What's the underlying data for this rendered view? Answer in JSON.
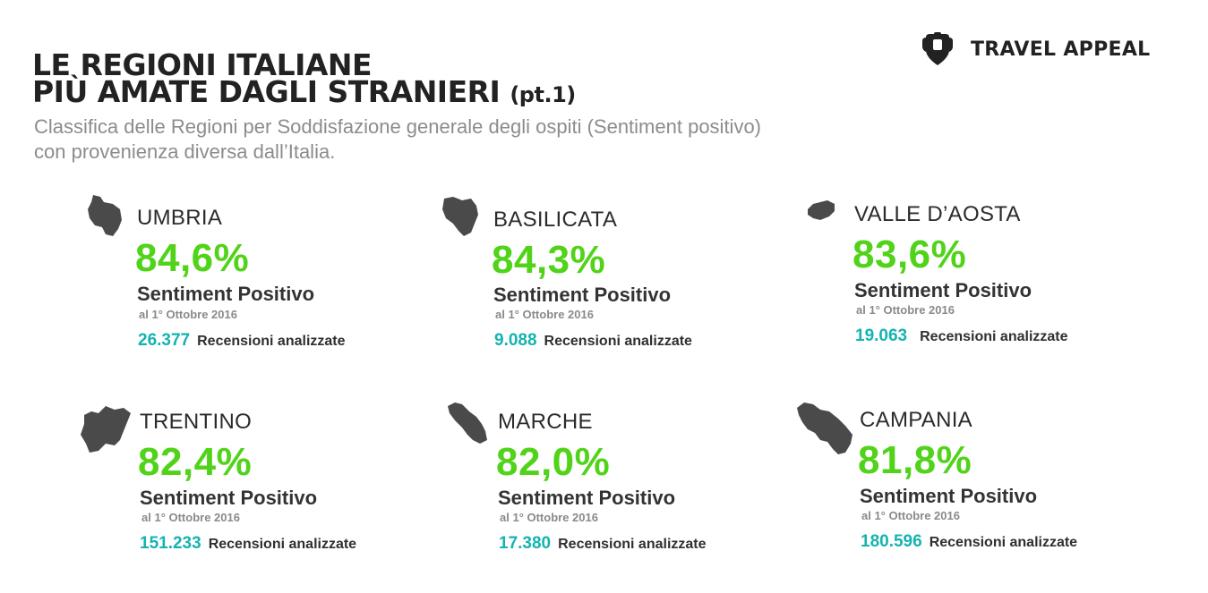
{
  "header": {
    "title_line1": "LE REGIONI ITALIANE",
    "title_line2": "PIÙ AMATE DAGLI STRANIERI",
    "title_suffix": "(pt.1)",
    "subtitle_line1": "Classifica delle Regioni per Soddisfazione generale degli ospiti (Sentiment positivo)",
    "subtitle_line2": "con provenienza diversa dall’Italia."
  },
  "brand": {
    "name": "TRAVEL APPEAL",
    "icon": "travel-appeal-logo-icon"
  },
  "colors": {
    "percent": "#51d31a",
    "reviews_count": "#15b3b0",
    "map": "#4a4a4a",
    "subtitle": "#8c8c8c"
  },
  "regions": [
    {
      "name": "UMBRIA",
      "percent": "84,6%",
      "sentiment_label": "Sentiment Positivo",
      "date": "al 1° Ottobre 2016",
      "reviews_count": "26.377",
      "reviews_label": "Recensioni analizzate",
      "icon": "umbria-map-icon"
    },
    {
      "name": "BASILICATA",
      "percent": "84,3%",
      "sentiment_label": "Sentiment Positivo",
      "date": "al 1° Ottobre 2016",
      "reviews_count": "9.088",
      "reviews_label": "Recensioni analizzate",
      "icon": "basilicata-map-icon"
    },
    {
      "name": "VALLE D’AOSTA",
      "percent": "83,6%",
      "sentiment_label": "Sentiment Positivo",
      "date": "al 1° Ottobre 2016",
      "reviews_count": "19.063",
      "reviews_label": "Recensioni analizzate",
      "icon": "valle-daosta-map-icon"
    },
    {
      "name": "TRENTINO",
      "percent": "82,4%",
      "sentiment_label": "Sentiment Positivo",
      "date": "al 1° Ottobre 2016",
      "reviews_count": "151.233",
      "reviews_label": "Recensioni analizzate",
      "icon": "trentino-map-icon"
    },
    {
      "name": "MARCHE",
      "percent": "82,0%",
      "sentiment_label": "Sentiment Positivo",
      "date": "al 1° Ottobre 2016",
      "reviews_count": "17.380",
      "reviews_label": "Recensioni analizzate",
      "icon": "marche-map-icon"
    },
    {
      "name": "CAMPANIA",
      "percent": "81,8%",
      "sentiment_label": "Sentiment Positivo",
      "date": "al 1° Ottobre 2016",
      "reviews_count": "180.596",
      "reviews_label": "Recensioni analizzate",
      "icon": "campania-map-icon"
    }
  ]
}
